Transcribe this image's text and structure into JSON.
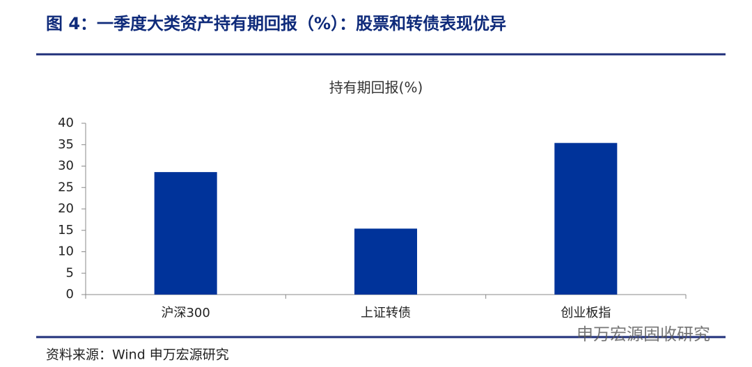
{
  "figure_title": "图 4：一季度大类资产持有期回报（%）：股票和转债表现优异",
  "source": "资料来源：Wind  申万宏源研究",
  "watermark": "申万宏源固收研究",
  "chart_data": {
    "type": "bar",
    "title": "持有期回报(%)",
    "categories": [
      "沪深300",
      "上证转债",
      "创业板指"
    ],
    "values": [
      28.6,
      15.4,
      35.4
    ],
    "color": "#00339a",
    "ylim": [
      0,
      40
    ],
    "yticks": [
      0,
      5,
      10,
      15,
      20,
      25,
      30,
      35,
      40
    ],
    "grid": false
  }
}
